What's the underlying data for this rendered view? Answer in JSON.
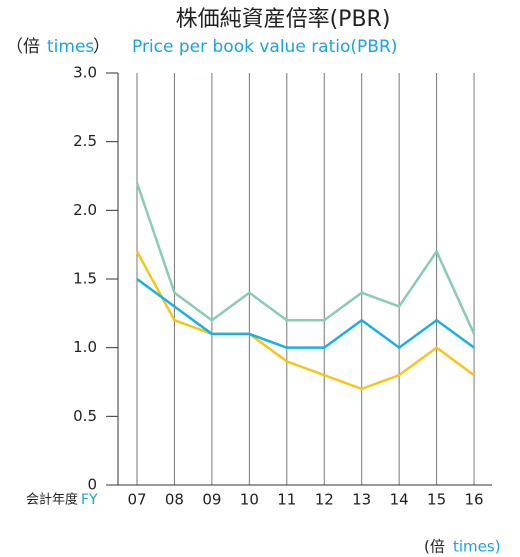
{
  "chart_data": {
    "type": "line",
    "title": "株価純資産倍率(PBR)",
    "subtitle": "Price per book value ratio(PBR)",
    "y_label_ja": "（倍",
    "y_label_en": "times",
    "y_label_close": "）",
    "x_label_ja": "会計年度",
    "x_label_en": "FY",
    "x_unit_ja": "(倍",
    "x_unit_en": "times)",
    "categories": [
      "07",
      "08",
      "09",
      "10",
      "11",
      "12",
      "13",
      "14",
      "15",
      "16"
    ],
    "series": [
      {
        "color": "#88ccb4",
        "values": [
          2.2,
          1.4,
          1.2,
          1.4,
          1.2,
          1.2,
          1.4,
          1.3,
          1.7,
          1.1
        ]
      },
      {
        "color": "#f5c51a",
        "values": [
          1.7,
          1.2,
          1.1,
          1.1,
          0.9,
          0.8,
          0.7,
          0.8,
          1.0,
          0.8
        ]
      },
      {
        "color": "#1ab0e6",
        "values": [
          1.5,
          1.3,
          1.1,
          1.1,
          1.0,
          1.0,
          1.2,
          1.0,
          1.2,
          1.0
        ]
      }
    ],
    "ylim": [
      0,
      3
    ],
    "yticks": [
      0,
      0.5,
      {
        "value": 1,
        "label": "1.0"
      },
      1.5,
      {
        "value": 2,
        "label": "2.0"
      },
      2.5,
      {
        "value": 3,
        "label": "3.0"
      }
    ]
  }
}
